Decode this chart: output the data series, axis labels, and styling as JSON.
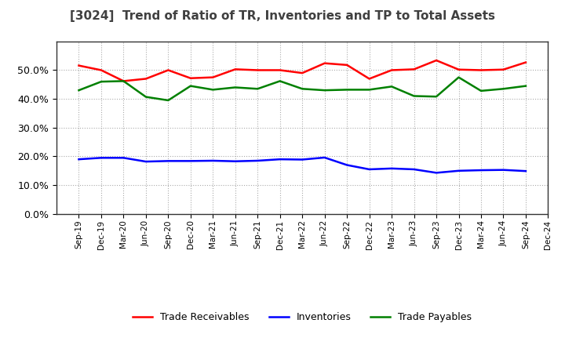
{
  "title": "[3024]  Trend of Ratio of TR, Inventories and TP to Total Assets",
  "x_labels": [
    "Sep-19",
    "Dec-19",
    "Mar-20",
    "Jun-20",
    "Sep-20",
    "Dec-20",
    "Mar-21",
    "Jun-21",
    "Sep-21",
    "Dec-21",
    "Mar-22",
    "Jun-22",
    "Sep-22",
    "Dec-22",
    "Mar-23",
    "Jun-23",
    "Sep-23",
    "Dec-23",
    "Mar-24",
    "Jun-24",
    "Sep-24",
    "Dec-24"
  ],
  "trade_receivables": [
    0.516,
    0.5,
    0.462,
    0.47,
    0.5,
    0.472,
    0.475,
    0.503,
    0.5,
    0.5,
    0.49,
    0.524,
    0.518,
    0.47,
    0.5,
    0.503,
    0.534,
    0.502,
    0.5,
    0.502,
    0.527,
    null
  ],
  "inventories": [
    0.19,
    0.195,
    0.195,
    0.182,
    0.184,
    0.184,
    0.185,
    0.183,
    0.185,
    0.19,
    0.189,
    0.196,
    0.17,
    0.155,
    0.158,
    0.155,
    0.143,
    0.15,
    0.152,
    0.153,
    0.149,
    null
  ],
  "trade_payables": [
    0.43,
    0.46,
    0.462,
    0.407,
    0.395,
    0.445,
    0.432,
    0.44,
    0.435,
    0.462,
    0.435,
    0.43,
    0.432,
    0.432,
    0.443,
    0.41,
    0.408,
    0.475,
    0.428,
    0.435,
    0.445,
    null
  ],
  "tr_color": "#ff0000",
  "inv_color": "#0000ff",
  "tp_color": "#008000",
  "ylim": [
    0.0,
    0.6
  ],
  "yticks": [
    0.0,
    0.1,
    0.2,
    0.3,
    0.4,
    0.5
  ],
  "background_color": "#ffffff",
  "grid_color": "#aaaaaa",
  "title_color": "#404040"
}
